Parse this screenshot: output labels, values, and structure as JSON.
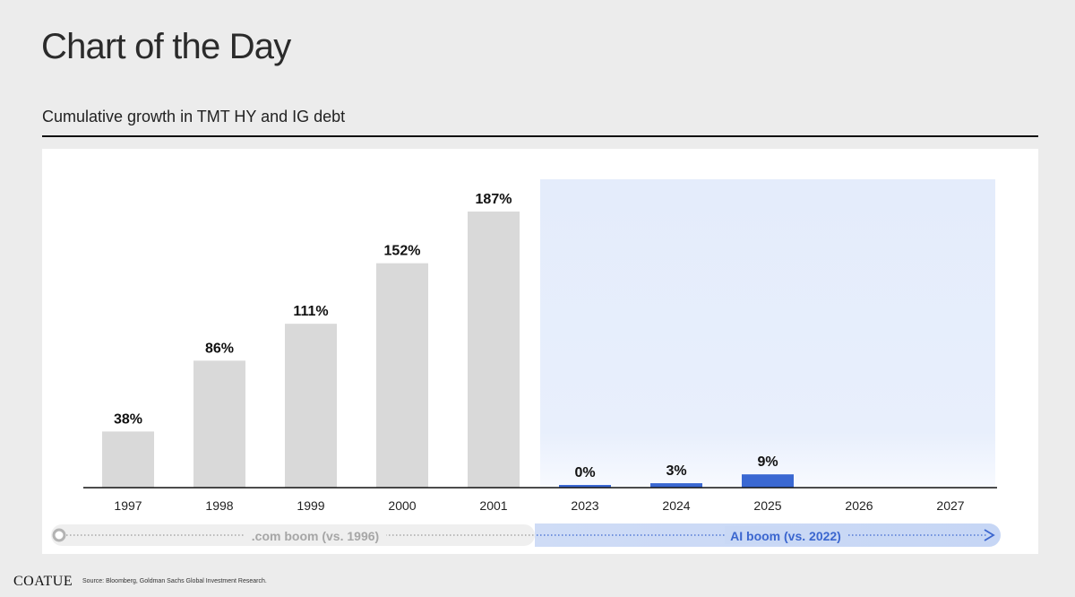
{
  "header": {
    "title": "Chart of the Day",
    "subtitle": "Cumulative growth in TMT HY and IG debt"
  },
  "footer": {
    "logo": "COATUE",
    "source": "Source: Bloomberg, Goldman Sachs Global Investment Research."
  },
  "colors": {
    "dotcom_bar": "#d9d9d9",
    "ai_bar": "#3a68d2",
    "ai_region_top": "#e4ecfb",
    "ai_label": "#3b66cf"
  },
  "chart_data": {
    "type": "bar",
    "categories": [
      "1997",
      "1998",
      "1999",
      "2000",
      "2001",
      "2023",
      "2024",
      "2025",
      "2026",
      "2027"
    ],
    "values": [
      38,
      86,
      111,
      152,
      187,
      0,
      3,
      9,
      null,
      null
    ],
    "data_labels": [
      "38%",
      "86%",
      "111%",
      "152%",
      "187%",
      "0%",
      "3%",
      "9%",
      "",
      ""
    ],
    "value_unit": "%",
    "ylim": [
      0,
      200
    ],
    "grid": false,
    "periods": [
      {
        "label": ".com boom (vs. 1996)",
        "categories": [
          "1997",
          "1998",
          "1999",
          "2000",
          "2001"
        ]
      },
      {
        "label": "AI boom (vs. 2022)",
        "categories": [
          "2023",
          "2024",
          "2025",
          "2026",
          "2027"
        ]
      }
    ]
  }
}
